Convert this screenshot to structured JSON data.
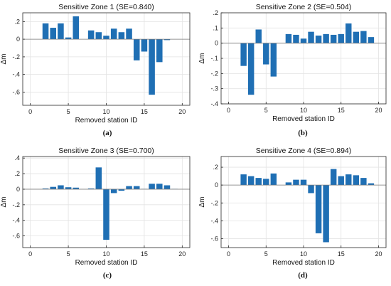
{
  "chart_data": [
    {
      "type": "bar",
      "title": "Sensitive Zone 1 (SE=0.840)",
      "caption": "(a)",
      "xlabel": "Removed station ID",
      "ylabel": "Δm",
      "xlim": [
        -1,
        21
      ],
      "ylim": [
        -0.75,
        0.3
      ],
      "xticks": [
        0,
        5,
        10,
        15,
        20
      ],
      "yticks": [
        -0.6,
        -0.4,
        -0.2,
        0,
        0.2
      ],
      "x": [
        2,
        3,
        4,
        5,
        6,
        7,
        8,
        9,
        10,
        11,
        12,
        13,
        14,
        15,
        16,
        17,
        18,
        19
      ],
      "values": [
        0.18,
        0.13,
        0.18,
        0.02,
        0.26,
        0,
        0.1,
        0.08,
        0.04,
        0.12,
        0.08,
        0.12,
        -0.24,
        -0.14,
        -0.63,
        -0.26,
        -0.01,
        0
      ],
      "grid": true,
      "color": "#1f6fb4"
    },
    {
      "type": "bar",
      "title": "Sensitive Zone 2 (SE=0.504)",
      "caption": "(b)",
      "xlabel": "Removed station ID",
      "ylabel": "Δm",
      "xlim": [
        -1,
        21
      ],
      "ylim": [
        -0.4,
        0.2
      ],
      "xticks": [
        0,
        5,
        10,
        15,
        20
      ],
      "yticks": [
        -0.4,
        -0.3,
        -0.2,
        -0.1,
        0,
        0.1,
        0.2
      ],
      "x": [
        2,
        3,
        4,
        5,
        6,
        7,
        8,
        9,
        10,
        11,
        12,
        13,
        14,
        15,
        16,
        17,
        18,
        19
      ],
      "values": [
        -0.15,
        -0.34,
        0.09,
        -0.14,
        -0.22,
        0,
        0.06,
        0.055,
        0.03,
        0.075,
        0.05,
        0.06,
        0.055,
        0.06,
        0.13,
        0.075,
        0.08,
        0.04
      ],
      "grid": true,
      "color": "#1f6fb4"
    },
    {
      "type": "bar",
      "title": "Sensitive Zone 3 (SE=0.700)",
      "caption": "(c)",
      "xlabel": "Removed station ID",
      "ylabel": "Δm",
      "xlim": [
        -1,
        21
      ],
      "ylim": [
        -0.75,
        0.42
      ],
      "xticks": [
        0,
        5,
        10,
        15,
        20
      ],
      "yticks": [
        -0.6,
        -0.4,
        -0.2,
        0,
        0.2,
        0.4
      ],
      "x": [
        2,
        3,
        4,
        5,
        6,
        7,
        8,
        9,
        10,
        11,
        12,
        13,
        14,
        15,
        16,
        17,
        18,
        19
      ],
      "values": [
        0.01,
        0.03,
        0.05,
        0.025,
        0.02,
        0,
        0.01,
        0.28,
        -0.65,
        -0.05,
        -0.02,
        0.04,
        0.04,
        0.005,
        0.07,
        0.07,
        0.05,
        0.005
      ],
      "grid": true,
      "color": "#1f6fb4"
    },
    {
      "type": "bar",
      "title": "Sensitive Zone 4 (SE=0.894)",
      "caption": "(d)",
      "xlabel": "Removed station ID",
      "ylabel": "Δm",
      "xlim": [
        -1,
        21
      ],
      "ylim": [
        -0.7,
        0.32
      ],
      "xticks": [
        0,
        5,
        10,
        15,
        20
      ],
      "yticks": [
        -0.6,
        -0.4,
        -0.2,
        0,
        0.2
      ],
      "x": [
        2,
        3,
        4,
        5,
        6,
        7,
        8,
        9,
        10,
        11,
        12,
        13,
        14,
        15,
        16,
        17,
        18,
        19
      ],
      "values": [
        0.12,
        0.1,
        0.08,
        0.07,
        0.13,
        0,
        0.03,
        0.06,
        0.06,
        -0.09,
        -0.54,
        -0.64,
        0.18,
        0.1,
        0.12,
        0.11,
        0.08,
        0.02
      ],
      "grid": true,
      "color": "#1f6fb4"
    }
  ]
}
